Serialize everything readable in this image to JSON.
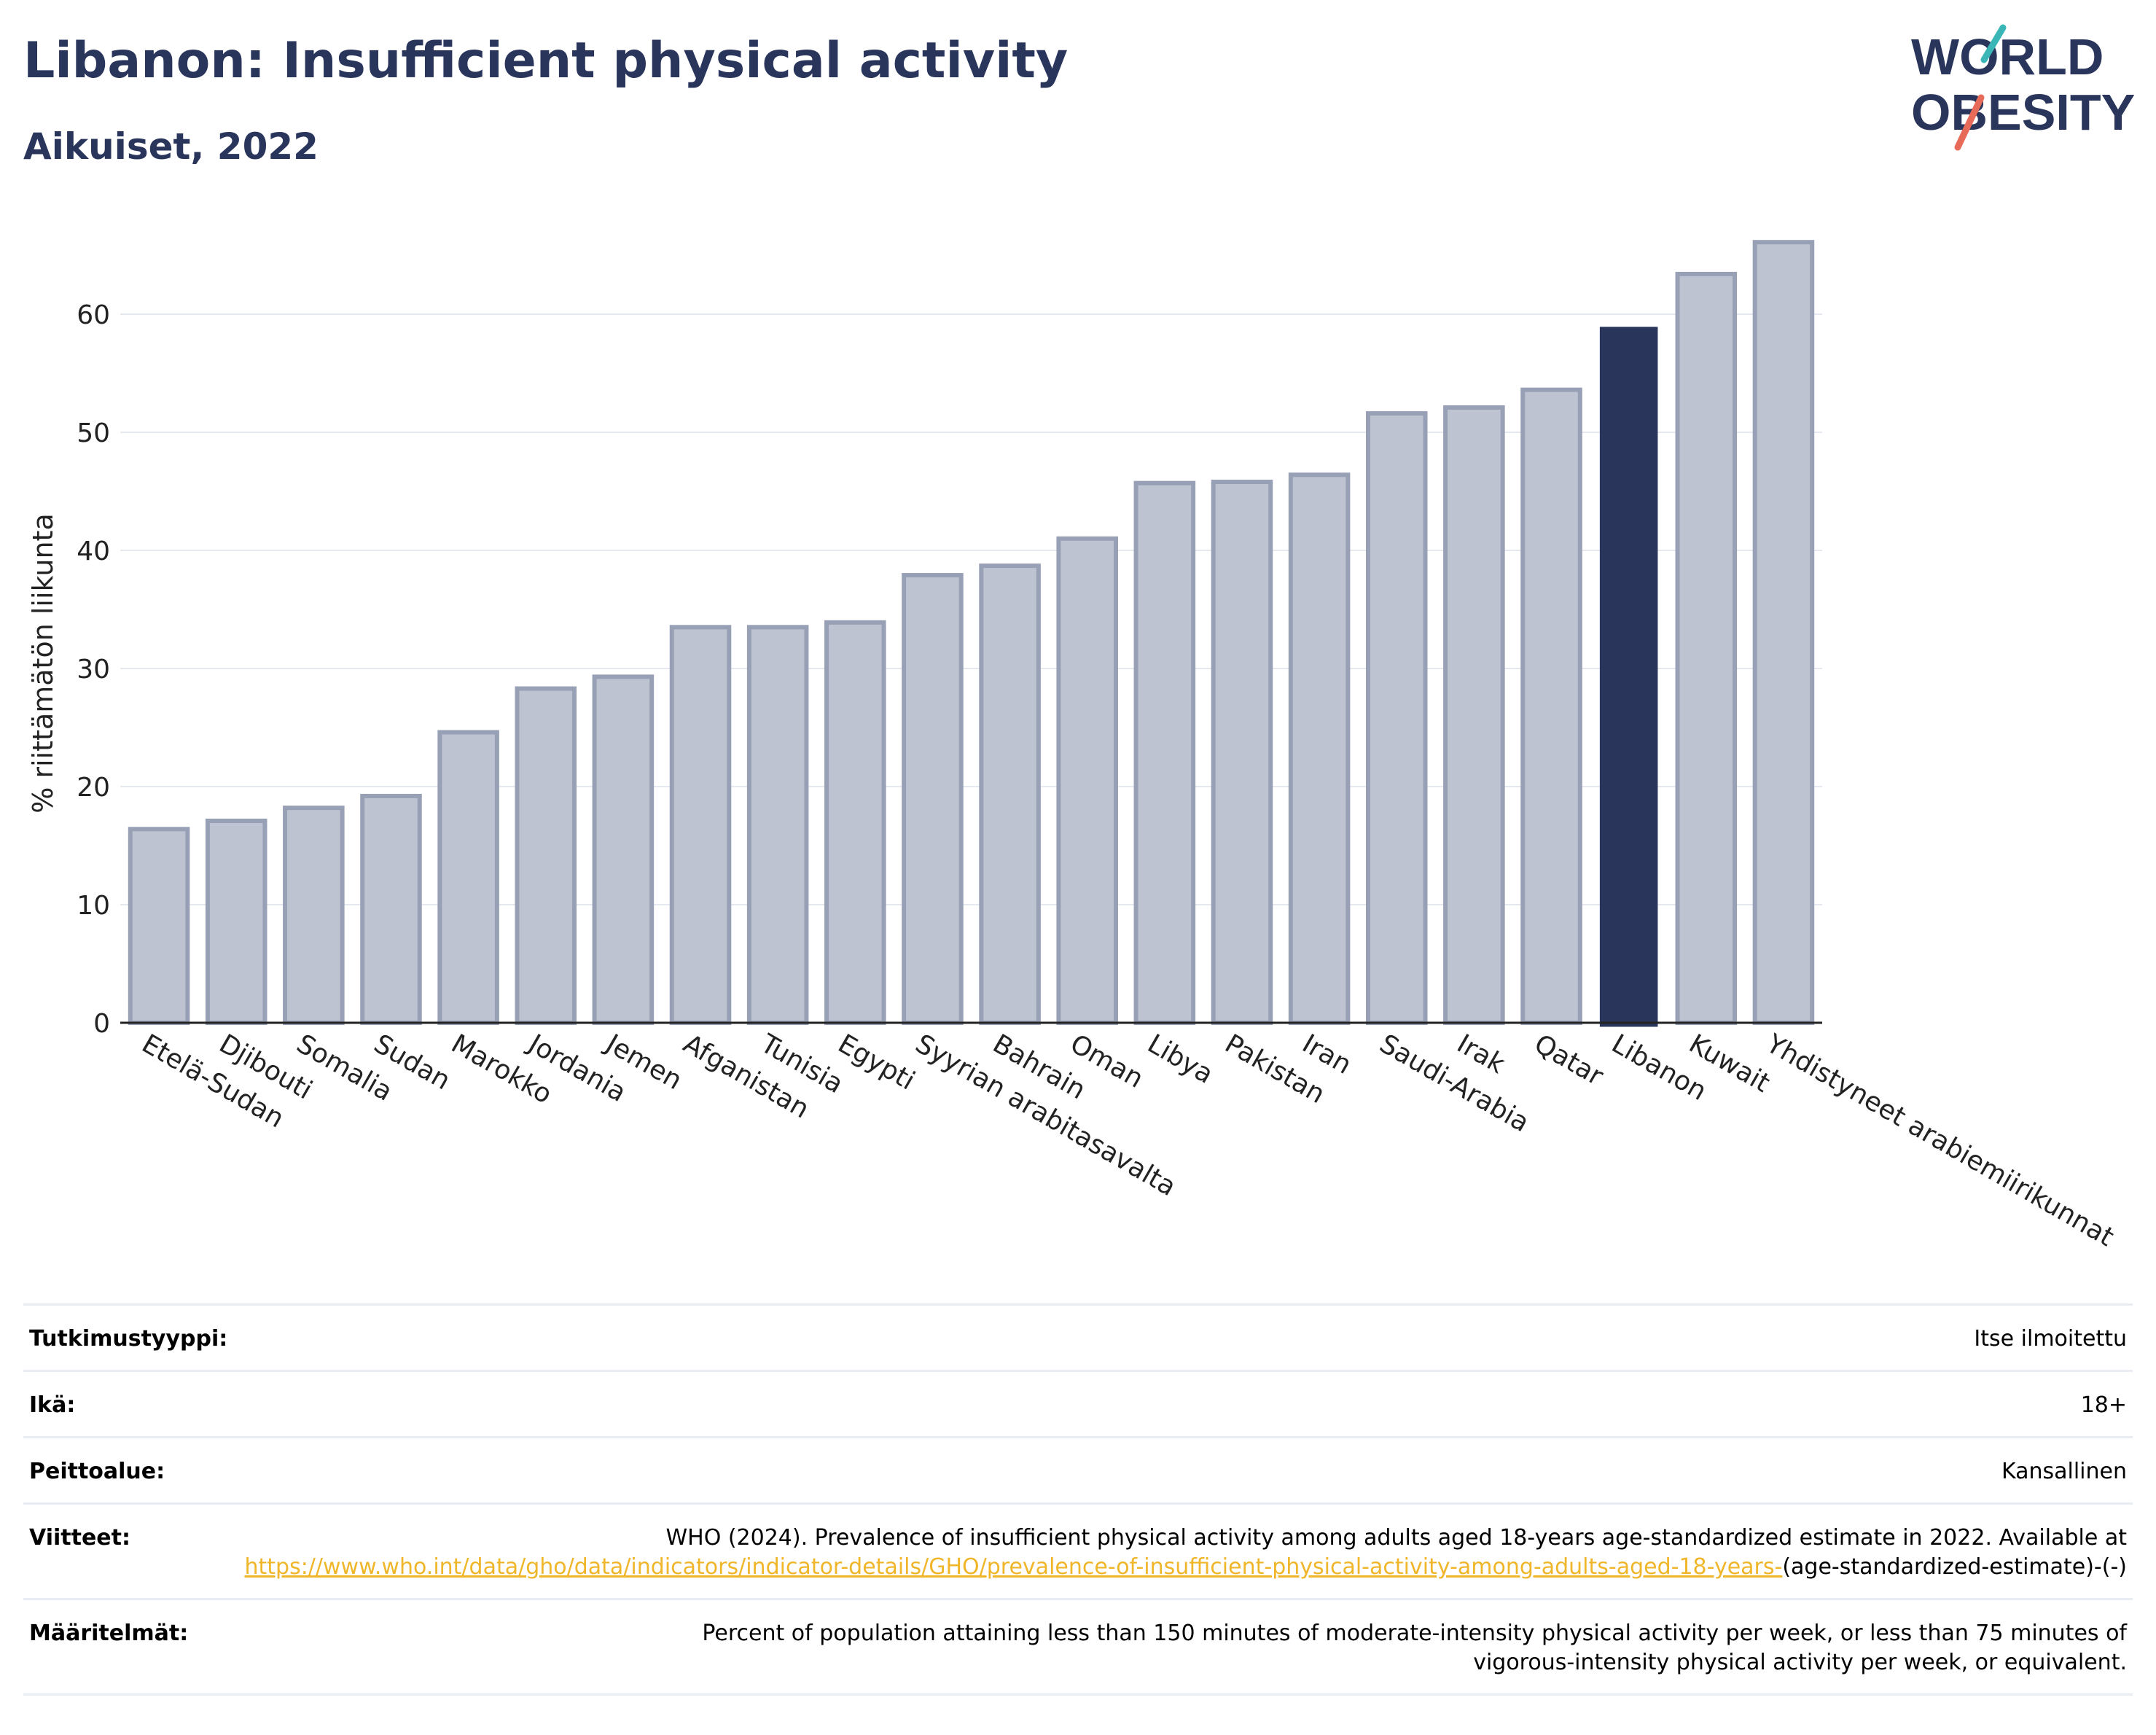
{
  "header": {
    "title": "Libanon: Insufficient physical activity",
    "subtitle": "Aikuiset, 2022"
  },
  "logo": {
    "line1": "WORLD",
    "line2": "OBESITY"
  },
  "colors": {
    "bar": "#bec3d1",
    "bar_border": "#98a0b6",
    "highlight": "#2a355c",
    "title": "#2a355c",
    "link": "#f0b62a"
  },
  "chart_data": {
    "type": "bar",
    "ylabel": "% riittämätön liikunta",
    "xlabel": "",
    "ylim": [
      0,
      70
    ],
    "yticks": [
      0,
      10,
      20,
      30,
      40,
      50,
      60
    ],
    "grid": true,
    "highlight_category": "Libanon",
    "categories": [
      "Etelä-Sudan",
      "Djibouti",
      "Somalia",
      "Sudan",
      "Marokko",
      "Jordania",
      "Jemen",
      "Afganistan",
      "Tunisia",
      "Egypti",
      "Syyrian arabitasavalta",
      "Bahrain",
      "Oman",
      "Libya",
      "Pakistan",
      "Iran",
      "Saudi-Arabia",
      "Irak",
      "Qatar",
      "Libanon",
      "Kuwait",
      "Yhdistyneet arabiemiirikunnat"
    ],
    "values": [
      16.4,
      17.1,
      18.2,
      19.2,
      24.6,
      28.3,
      29.3,
      33.5,
      33.5,
      33.9,
      37.9,
      38.7,
      41.0,
      45.7,
      45.8,
      46.4,
      51.6,
      52.1,
      53.6,
      58.9,
      63.4,
      66.1
    ]
  },
  "info": {
    "study_type": {
      "label": "Tutkimustyyppi:",
      "value": "Itse ilmoitettu"
    },
    "age": {
      "label": "Ikä:",
      "value": "18+"
    },
    "coverage": {
      "label": "Peittoalue:",
      "value": "Kansallinen"
    },
    "references": {
      "label": "Viitteet:",
      "text": "WHO (2024). Prevalence of insufficient physical activity among adults aged 18-years age-standardized estimate in 2022. Available at",
      "link": "https://www.who.int/data/gho/data/indicators/indicator-details/GHO/prevalence-of-insufficient-physical-activity-among-adults-aged-18-years-",
      "suffix": "(age-standardized-estimate)-(-)"
    },
    "definitions": {
      "label": "Määritelmät:",
      "value": "Percent of population attaining less than 150 minutes of moderate-intensity physical activity per week, or less than 75 minutes of vigorous-intensity physical activity per week, or equivalent."
    }
  }
}
